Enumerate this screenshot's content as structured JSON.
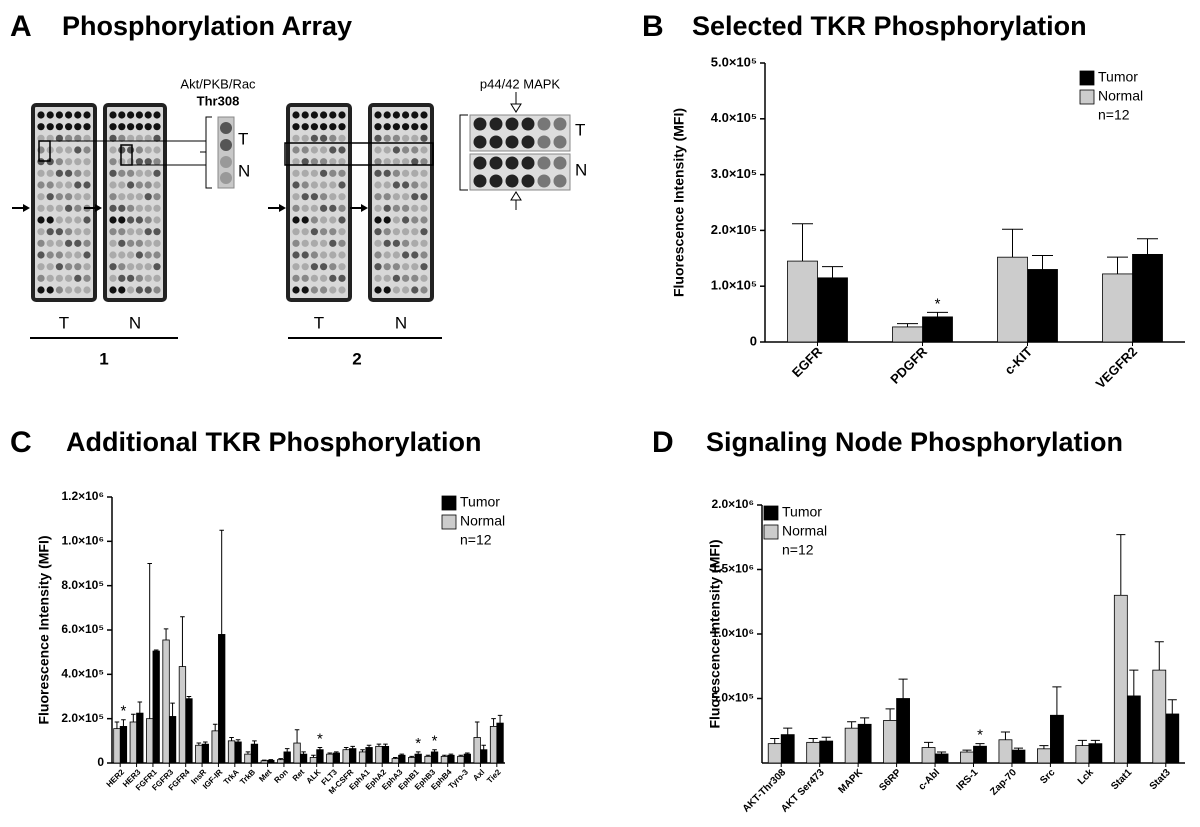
{
  "panel_a": {
    "label": "A",
    "title": "Phosphorylation Array",
    "insets": [
      {
        "title": "Akt/PKB/Rac",
        "subtitle": "Thr308",
        "rows": [
          "T",
          "N"
        ]
      },
      {
        "title": "p44/42 MAPK",
        "rows": [
          "T",
          "N"
        ]
      }
    ],
    "groups": [
      {
        "lanes": [
          "T",
          "N"
        ],
        "label": "1"
      },
      {
        "lanes": [
          "T",
          "N"
        ],
        "label": "2"
      }
    ]
  },
  "chart_data": [
    {
      "type": "bar",
      "panel_label": "B",
      "title": "Selected TKR Phosphorylation",
      "ylabel": "Fluorescence Intensity (MFI)",
      "categories": [
        "EGFR",
        "PDGFR",
        "c-KIT",
        "VEGFR2"
      ],
      "series": [
        {
          "name": "Tumor",
          "color": "#000000",
          "values": [
            115000,
            45000,
            130000,
            157000
          ],
          "errors": [
            20000,
            8000,
            25000,
            28000
          ]
        },
        {
          "name": "Normal",
          "color": "#cccccc",
          "values": [
            145000,
            27000,
            152000,
            122000
          ],
          "errors": [
            67000,
            6000,
            50000,
            30000
          ]
        }
      ],
      "legend_note": "n=12",
      "annotations": [
        {
          "text": "*",
          "category": "PDGFR",
          "series": "Tumor"
        }
      ],
      "ylim": [
        0,
        500000
      ],
      "yticks": [
        0,
        {
          "value": 100000,
          "label": "1.0×10⁵"
        },
        {
          "value": 200000,
          "label": "2.0×10⁵"
        },
        {
          "value": 300000,
          "label": "3.0×10⁵"
        },
        {
          "value": 400000,
          "label": "4.0×10⁵"
        },
        {
          "value": 500000,
          "label": "5.0×10⁵"
        }
      ],
      "grid": false
    },
    {
      "type": "bar",
      "panel_label": "C",
      "title": "Additional TKR Phosphorylation",
      "ylabel": "Fluorescence Intensity (MFI)",
      "categories": [
        "HER2",
        "HER3",
        "FGFR1",
        "FGFR3",
        "FGFR4",
        "InsR",
        "IGF-IR",
        "TrkA",
        "TrkB",
        "Met",
        "Ron",
        "Ret",
        "ALK",
        "FLT3",
        "M-CSFR",
        "EphA1",
        "EphA2",
        "EphA3",
        "EphB1",
        "EphB3",
        "EphB4",
        "Tyro-3",
        "Axl",
        "Tie2"
      ],
      "series": [
        {
          "name": "Tumor",
          "color": "#000000",
          "values": [
            165000,
            225000,
            505000,
            210000,
            290000,
            85000,
            580000,
            95000,
            85000,
            12000,
            50000,
            40000,
            60000,
            45000,
            65000,
            70000,
            75000,
            35000,
            40000,
            50000,
            35000,
            40000,
            60000,
            180000
          ],
          "errors": [
            30000,
            50000,
            5000,
            60000,
            10000,
            10000,
            470000,
            10000,
            15000,
            3000,
            15000,
            10000,
            10000,
            5000,
            10000,
            10000,
            10000,
            5000,
            10000,
            10000,
            5000,
            5000,
            20000,
            35000
          ]
        },
        {
          "name": "Normal",
          "color": "#cccccc",
          "values": [
            155000,
            185000,
            200000,
            555000,
            435000,
            80000,
            145000,
            100000,
            40000,
            10000,
            15000,
            90000,
            25000,
            40000,
            60000,
            50000,
            75000,
            20000,
            25000,
            30000,
            30000,
            30000,
            115000,
            165000
          ],
          "errors": [
            30000,
            35000,
            700000,
            50000,
            225000,
            10000,
            30000,
            15000,
            10000,
            3000,
            5000,
            60000,
            10000,
            5000,
            10000,
            10000,
            10000,
            5000,
            5000,
            5000,
            5000,
            5000,
            70000,
            35000
          ]
        }
      ],
      "legend_note": "n=12",
      "annotations": [
        {
          "text": "*",
          "category": "HER2",
          "series": "Tumor"
        },
        {
          "text": "*",
          "category": "ALK",
          "series": "Tumor"
        },
        {
          "text": "*",
          "category": "EphB1",
          "series": "Tumor"
        },
        {
          "text": "*",
          "category": "EphB3",
          "series": "Tumor"
        }
      ],
      "ylim": [
        0,
        1200000
      ],
      "yticks": [
        0,
        {
          "value": 200000,
          "label": "2.0×10⁵"
        },
        {
          "value": 400000,
          "label": "4.0×10⁵"
        },
        {
          "value": 600000,
          "label": "6.0×10⁵"
        },
        {
          "value": 800000,
          "label": "8.0×10⁵"
        },
        {
          "value": 1000000,
          "label": "1.0×10⁶"
        },
        {
          "value": 1200000,
          "label": "1.2×10⁶"
        }
      ],
      "grid": false
    },
    {
      "type": "bar",
      "panel_label": "D",
      "title": "Signaling Node Phosphorylation",
      "ylabel": "Fluorescence Intensity (MFI)",
      "categories": [
        "AKT-Thr308",
        "AKT Ser473",
        "MAPK",
        "S6RP",
        "c-Abl",
        "IRS-1",
        "Zap-70",
        "Src",
        "Lck",
        "Stat1",
        "Stat3"
      ],
      "series": [
        {
          "name": "Tumor",
          "color": "#000000",
          "values": [
            220000,
            170000,
            300000,
            500000,
            70000,
            130000,
            100000,
            370000,
            150000,
            520000,
            380000
          ],
          "errors": [
            50000,
            30000,
            50000,
            150000,
            15000,
            20000,
            15000,
            220000,
            25000,
            200000,
            110000
          ]
        },
        {
          "name": "Normal",
          "color": "#cccccc",
          "values": [
            150000,
            160000,
            270000,
            330000,
            120000,
            85000,
            180000,
            110000,
            135000,
            1300000,
            720000
          ],
          "errors": [
            40000,
            30000,
            50000,
            90000,
            40000,
            15000,
            60000,
            25000,
            40000,
            470000,
            220000
          ]
        }
      ],
      "legend_note": "n=12",
      "annotations": [
        {
          "text": "*",
          "category": "IRS-1",
          "series": "Tumor"
        }
      ],
      "ylim": [
        0,
        2000000
      ],
      "yticks": [
        {
          "value": 500000,
          "label": "5.0×10⁵"
        },
        {
          "value": 1000000,
          "label": "1.0×10⁶"
        },
        {
          "value": 1500000,
          "label": "1.5×10⁶"
        },
        {
          "value": 2000000,
          "label": "2.0×10⁶"
        }
      ],
      "grid": false
    }
  ]
}
